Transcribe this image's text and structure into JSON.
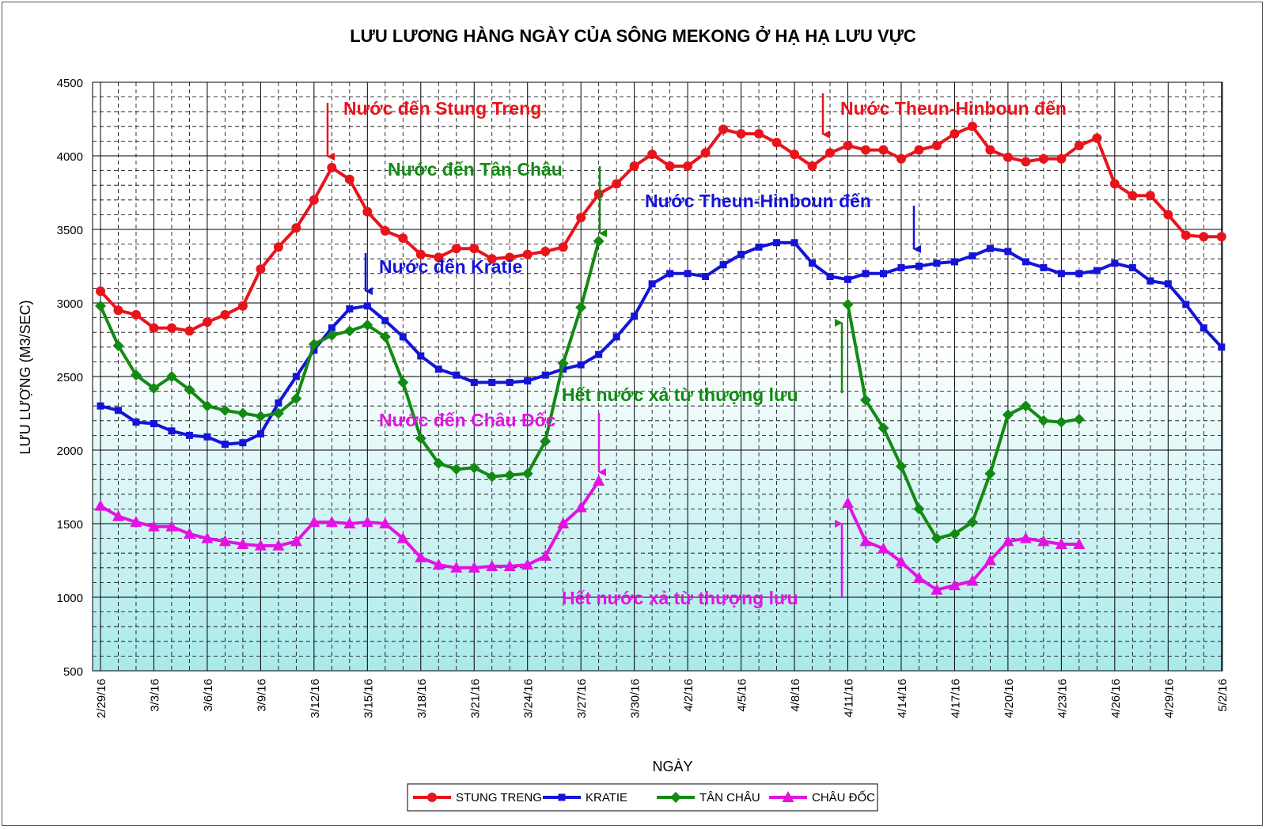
{
  "chart_data": {
    "type": "line",
    "title": "LƯU LƯƠNG HÀNG NGÀY CỦA SÔNG MEKONG Ở HẠ HẠ LƯU VỰC",
    "xlabel": "NGÀY",
    "ylabel": "LƯU LƯỢNG (M3/SEC)",
    "ylim": [
      500,
      4500
    ],
    "yticks": [
      500,
      1000,
      1500,
      2000,
      2500,
      3000,
      3500,
      4000,
      4500
    ],
    "grid": true,
    "legend_position": "bottom",
    "x": [
      "2/29/16",
      "3/1/16",
      "3/2/16",
      "3/3/16",
      "3/4/16",
      "3/5/16",
      "3/6/16",
      "3/7/16",
      "3/8/16",
      "3/9/16",
      "3/10/16",
      "3/11/16",
      "3/12/16",
      "3/13/16",
      "3/14/16",
      "3/15/16",
      "3/16/16",
      "3/17/16",
      "3/18/16",
      "3/19/16",
      "3/20/16",
      "3/21/16",
      "3/22/16",
      "3/23/16",
      "3/24/16",
      "3/25/16",
      "3/26/16",
      "3/27/16",
      "3/28/16",
      "3/29/16",
      "3/30/16",
      "3/31/16",
      "4/1/16",
      "4/2/16",
      "4/3/16",
      "4/4/16",
      "4/5/16",
      "4/6/16",
      "4/7/16",
      "4/8/16",
      "4/9/16",
      "4/10/16",
      "4/11/16",
      "4/12/16",
      "4/13/16",
      "4/14/16",
      "4/15/16",
      "4/16/16",
      "4/17/16",
      "4/18/16",
      "4/19/16",
      "4/20/16",
      "4/21/16",
      "4/22/16",
      "4/23/16",
      "4/24/16",
      "4/25/16",
      "4/26/16",
      "4/27/16",
      "4/28/16",
      "4/29/16",
      "4/30/16",
      "5/1/16",
      "5/2/16"
    ],
    "xtick_labels": [
      "2/29/16",
      "3/3/16",
      "3/6/16",
      "3/9/16",
      "3/12/16",
      "3/15/16",
      "3/18/16",
      "3/21/16",
      "3/24/16",
      "3/27/16",
      "3/30/16",
      "4/2/16",
      "4/5/16",
      "4/8/16",
      "4/11/16",
      "4/14/16",
      "4/17/16",
      "4/20/16",
      "4/23/16",
      "4/26/16",
      "4/29/16",
      "5/2/16"
    ],
    "series": [
      {
        "name": "STUNG TRENG",
        "color": "#e8141c",
        "marker": "circle",
        "values": [
          3080,
          2950,
          2920,
          2830,
          2830,
          2810,
          2870,
          2920,
          2980,
          3230,
          3380,
          3510,
          3700,
          3920,
          3840,
          3620,
          3490,
          3440,
          3330,
          3310,
          3370,
          3370,
          3300,
          3310,
          3330,
          3350,
          3380,
          3580,
          3740,
          3810,
          3930,
          4010,
          3930,
          3930,
          4020,
          4180,
          4150,
          4150,
          4090,
          4010,
          3930,
          4020,
          4070,
          4040,
          4040,
          3980,
          4040,
          4070,
          4150,
          4200,
          4040,
          3990,
          3960,
          3980,
          3980,
          4070,
          4120,
          3810,
          3730,
          3730,
          3600,
          3460,
          3450,
          3450
        ]
      },
      {
        "name": "KRATIE",
        "color": "#1414d8",
        "marker": "square",
        "values": [
          2300,
          2270,
          2190,
          2180,
          2130,
          2100,
          2090,
          2040,
          2050,
          2110,
          2320,
          2500,
          2680,
          2830,
          2960,
          2980,
          2880,
          2770,
          2640,
          2550,
          2510,
          2460,
          2460,
          2460,
          2470,
          2510,
          2550,
          2580,
          2650,
          2770,
          2910,
          3130,
          3200,
          3200,
          3180,
          3260,
          3330,
          3380,
          3410,
          3410,
          3270,
          3180,
          3160,
          3200,
          3200,
          3240,
          3250,
          3270,
          3280,
          3320,
          3370,
          3350,
          3280,
          3240,
          3200,
          3200,
          3220,
          3270,
          3240,
          3150,
          3130,
          2990,
          2830,
          2700
        ]
      },
      {
        "name": "TÂN CHÂU",
        "color": "#138a13",
        "marker": "diamond",
        "values": [
          2980,
          2710,
          2510,
          2420,
          2500,
          2410,
          2300,
          2270,
          2250,
          2230,
          2250,
          2350,
          2720,
          2780,
          2810,
          2850,
          2770,
          2460,
          2080,
          1910,
          1870,
          1880,
          1820,
          1830,
          1840,
          2060,
          2590,
          2970,
          3420,
          null,
          null,
          null,
          null,
          null,
          null,
          null,
          null,
          null,
          null,
          null,
          null,
          null,
          2990,
          2340,
          2150,
          1890,
          1600,
          1400,
          1430,
          1510,
          1840,
          2240,
          2300,
          2200,
          2190,
          2210,
          null,
          null,
          null,
          null,
          null,
          null,
          null,
          null
        ]
      },
      {
        "name": "CHÂU ĐỐC",
        "color": "#e312e3",
        "marker": "triangle",
        "values": [
          1620,
          1550,
          1510,
          1480,
          1480,
          1430,
          1400,
          1380,
          1360,
          1350,
          1350,
          1380,
          1510,
          1510,
          1500,
          1510,
          1500,
          1400,
          1270,
          1220,
          1200,
          1200,
          1210,
          1210,
          1220,
          1280,
          1500,
          1610,
          1790,
          null,
          null,
          null,
          null,
          null,
          null,
          null,
          null,
          null,
          null,
          null,
          null,
          null,
          1640,
          1380,
          1330,
          1240,
          1130,
          1050,
          1080,
          1110,
          1250,
          1380,
          1400,
          1380,
          1360,
          1360,
          null,
          null,
          null,
          null,
          null,
          null,
          null,
          null
        ]
      }
    ],
    "annotations": [
      {
        "text": "Nước đến Stung Treng",
        "color": "#e8141c"
      },
      {
        "text": "Nước Theun-Hinboun đến",
        "color": "#e8141c"
      },
      {
        "text": "Nước đến Tân Châu",
        "color": "#138a13"
      },
      {
        "text": "Nước Theun-Hinboun đến",
        "color": "#1414d8"
      },
      {
        "text": "Nước đến Kratie",
        "color": "#1414d8"
      },
      {
        "text": "Hết nước xả từ thượng lưu",
        "color": "#138a13"
      },
      {
        "text": "Nước đến Châu Đốc",
        "color": "#e312e3"
      },
      {
        "text": "Hết nước xả từ thượng lưu",
        "color": "#e312e3"
      }
    ]
  }
}
